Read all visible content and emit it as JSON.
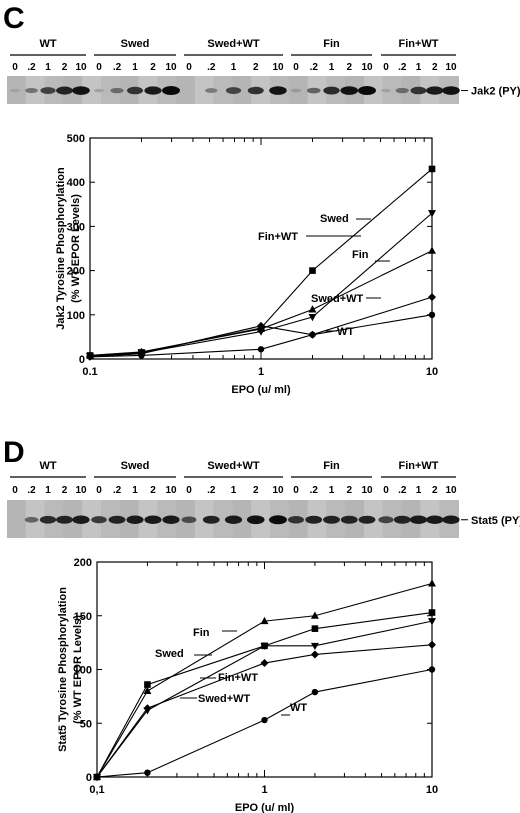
{
  "panels": [
    {
      "letter": "C",
      "blot": {
        "groups": [
          "WT",
          "Swed",
          "Swed+WT",
          "Fin",
          "Fin+WT"
        ],
        "lanes": [
          "0",
          ".2",
          "1",
          "2",
          "10"
        ],
        "band_label": "Jak2  (PY)",
        "band_intensity": [
          [
            0.05,
            0.35,
            0.65,
            0.85,
            0.95
          ],
          [
            0.05,
            0.4,
            0.75,
            0.9,
            1.0
          ],
          [
            0.0,
            0.3,
            0.65,
            0.75,
            0.95
          ],
          [
            0.1,
            0.45,
            0.8,
            0.95,
            1.0
          ],
          [
            0.05,
            0.4,
            0.75,
            0.9,
            0.95
          ]
        ]
      },
      "chart_data": {
        "type": "line",
        "xscale": "log",
        "xlim": [
          0.1,
          10
        ],
        "ylim": [
          0,
          500
        ],
        "xticks": [
          "0.1",
          "1",
          "10"
        ],
        "yticks": [
          "0",
          "100",
          "200",
          "300",
          "400",
          "500"
        ],
        "xlabel": "EPO     (u/ ml)",
        "ylabel_lines": [
          "Jak2 Tyrosine Phosphorylation",
          "(% WT EPOR Levels)"
        ],
        "x": [
          0.1,
          0.2,
          1,
          2,
          10
        ],
        "series": [
          {
            "name": "Swed",
            "marker": "square",
            "values": [
              8,
              15,
              70,
              200,
              430
            ]
          },
          {
            "name": "Fin+WT",
            "marker": "triangle-down",
            "values": [
              6,
              14,
              62,
              95,
              330
            ]
          },
          {
            "name": "Fin",
            "marker": "triangle-up",
            "values": [
              8,
              16,
              68,
              112,
              245
            ]
          },
          {
            "name": "Swed+WT",
            "marker": "diamond",
            "values": [
              5,
              12,
              75,
              55,
              140
            ]
          },
          {
            "name": "WT",
            "marker": "circle",
            "values": [
              5,
              8,
              22,
              55,
              100
            ]
          }
        ]
      }
    },
    {
      "letter": "D",
      "blot": {
        "groups": [
          "WT",
          "Swed",
          "Swed+WT",
          "Fin",
          "Fin+WT"
        ],
        "lanes": [
          "0",
          ".2",
          "1",
          "2",
          "10"
        ],
        "band_label": "Stat5  (PY)",
        "band_intensity": [
          [
            0.0,
            0.45,
            0.8,
            0.85,
            0.9
          ],
          [
            0.7,
            0.85,
            0.9,
            0.9,
            0.9
          ],
          [
            0.6,
            0.85,
            0.9,
            0.95,
            1.0
          ],
          [
            0.75,
            0.85,
            0.85,
            0.85,
            0.85
          ],
          [
            0.65,
            0.85,
            0.9,
            0.9,
            0.9
          ]
        ]
      },
      "chart_data": {
        "type": "line",
        "xscale": "log",
        "xlim": [
          0.1,
          10
        ],
        "ylim": [
          0,
          200
        ],
        "xticks": [
          "0,1",
          "1",
          "10"
        ],
        "yticks": [
          "0",
          "50",
          "100",
          "150",
          "200"
        ],
        "xlabel": "EPO     (u/ ml)",
        "ylabel_lines": [
          "Stat5   Tyrosine   Phosphorylation",
          "(%  WT  EPOR Levels)"
        ],
        "x": [
          0.1,
          0.2,
          1,
          2,
          10
        ],
        "series": [
          {
            "name": "Fin",
            "marker": "triangle-up",
            "values": [
              0,
              80,
              145,
              150,
              180
            ]
          },
          {
            "name": "Swed",
            "marker": "square",
            "values": [
              0,
              86,
              122,
              138,
              153
            ]
          },
          {
            "name": "Fin+WT",
            "marker": "triangle-down",
            "values": [
              0,
              62,
              122,
              122,
              145
            ]
          },
          {
            "name": "Swed+WT",
            "marker": "diamond",
            "values": [
              0,
              64,
              106,
              114,
              123
            ]
          },
          {
            "name": "WT",
            "marker": "circle",
            "values": [
              0,
              4,
              53,
              79,
              100
            ]
          }
        ]
      }
    }
  ]
}
